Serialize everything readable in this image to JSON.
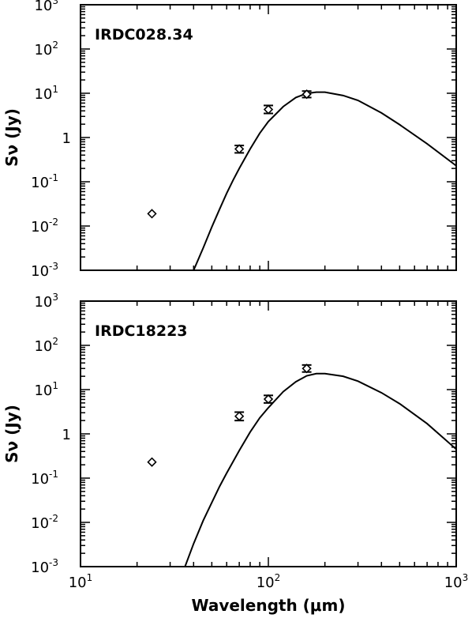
{
  "chart_data": [
    {
      "type": "scatter",
      "title": "IRDC028.34",
      "xlabel": "Wavelength (μm)",
      "ylabel": "Sν (Jy)",
      "xscale": "log",
      "yscale": "log",
      "xlim": [
        10,
        1000
      ],
      "ylim": [
        0.001,
        1000
      ],
      "x_ticks": [
        {
          "base": "10",
          "exp": "1"
        },
        {
          "base": "10",
          "exp": "2"
        },
        {
          "base": "10",
          "exp": "3"
        }
      ],
      "y_ticks": [
        {
          "base": "10",
          "exp": "-3"
        },
        {
          "base": "10",
          "exp": "-2"
        },
        {
          "base": "10",
          "exp": "-1"
        },
        {
          "base": "1",
          "exp": ""
        },
        {
          "base": "10",
          "exp": "1"
        },
        {
          "base": "10",
          "exp": "2"
        },
        {
          "base": "10",
          "exp": "3"
        }
      ],
      "show_x_tick_labels": false,
      "show_xlabel": false,
      "points": [
        {
          "x": 24,
          "y": 0.019,
          "err": false
        },
        {
          "x": 70,
          "y": 0.55,
          "err": true,
          "ylow": 0.45,
          "yhigh": 0.66
        },
        {
          "x": 100,
          "y": 4.3,
          "err": true,
          "ylow": 3.5,
          "yhigh": 5.3
        },
        {
          "x": 160,
          "y": 9.5,
          "err": true,
          "ylow": 8.0,
          "yhigh": 11.2
        }
      ],
      "model_curve": {
        "x": [
          40,
          45,
          50,
          55,
          60,
          65,
          70,
          80,
          90,
          100,
          120,
          140,
          160,
          180,
          200,
          250,
          300,
          400,
          500,
          700,
          1000
        ],
        "y": [
          0.001,
          0.0032,
          0.0095,
          0.024,
          0.055,
          0.11,
          0.2,
          0.55,
          1.25,
          2.3,
          5.0,
          8.0,
          9.9,
          10.6,
          10.6,
          8.9,
          6.9,
          3.6,
          1.95,
          0.72,
          0.23
        ]
      }
    },
    {
      "type": "scatter",
      "title": "IRDC18223",
      "xlabel": "Wavelength (μm)",
      "ylabel": "Sν (Jy)",
      "xscale": "log",
      "yscale": "log",
      "xlim": [
        10,
        1000
      ],
      "ylim": [
        0.001,
        1000
      ],
      "x_ticks": [
        {
          "base": "10",
          "exp": "1"
        },
        {
          "base": "10",
          "exp": "2"
        },
        {
          "base": "10",
          "exp": "3"
        }
      ],
      "y_ticks": [
        {
          "base": "10",
          "exp": "-3"
        },
        {
          "base": "10",
          "exp": "-2"
        },
        {
          "base": "10",
          "exp": "-1"
        },
        {
          "base": "1",
          "exp": ""
        },
        {
          "base": "10",
          "exp": "1"
        },
        {
          "base": "10",
          "exp": "2"
        },
        {
          "base": "10",
          "exp": "3"
        }
      ],
      "show_x_tick_labels": true,
      "show_xlabel": true,
      "points": [
        {
          "x": 24,
          "y": 0.23,
          "err": false
        },
        {
          "x": 70,
          "y": 2.5,
          "err": true,
          "ylow": 2.0,
          "yhigh": 3.1
        },
        {
          "x": 100,
          "y": 6.1,
          "err": true,
          "ylow": 5.0,
          "yhigh": 7.4
        },
        {
          "x": 160,
          "y": 30.0,
          "err": true,
          "ylow": 25.0,
          "yhigh": 36.0
        }
      ],
      "model_curve": {
        "x": [
          36,
          40,
          45,
          50,
          55,
          60,
          70,
          80,
          90,
          100,
          120,
          140,
          160,
          180,
          200,
          250,
          300,
          400,
          500,
          700,
          1000
        ],
        "y": [
          0.001,
          0.0033,
          0.011,
          0.028,
          0.065,
          0.13,
          0.42,
          1.1,
          2.3,
          3.9,
          9.0,
          15.0,
          20.5,
          23.0,
          23.0,
          20.0,
          15.5,
          8.5,
          4.8,
          1.7,
          0.45
        ]
      }
    }
  ]
}
